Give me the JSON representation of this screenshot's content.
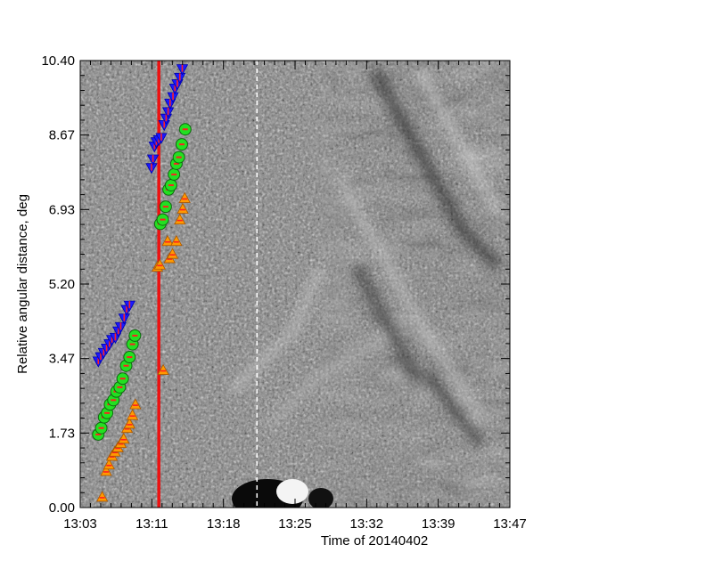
{
  "chart_data": {
    "type": "scatter",
    "xlabel": "Time of 20140402",
    "ylabel": "Relative angular distance, deg",
    "x_tick_labels": [
      "13:03",
      "13:11",
      "13:18",
      "13:25",
      "13:32",
      "13:39",
      "13:47"
    ],
    "y_tick_labels": [
      "0.00",
      "1.73",
      "3.47",
      "5.20",
      "6.93",
      "8.67",
      "10.40"
    ],
    "xlim_minutes": [
      0,
      44
    ],
    "ylim": [
      0,
      10.4
    ],
    "grid": false,
    "legend": "none",
    "background": "grayscale running-difference time-distance map",
    "markers": [
      {
        "series": "upper-blue",
        "shape": "triangle-down",
        "color": "#1a1aff",
        "edge": "#ff2020",
        "points": [
          [
            7.3,
            7.9
          ],
          [
            7.45,
            8.1
          ],
          [
            7.6,
            8.4
          ],
          [
            7.8,
            8.5
          ],
          [
            8.05,
            8.55
          ],
          [
            8.3,
            8.6
          ],
          [
            8.6,
            8.9
          ],
          [
            8.8,
            9.05
          ],
          [
            9.0,
            9.2
          ],
          [
            9.2,
            9.4
          ],
          [
            9.5,
            9.55
          ],
          [
            9.7,
            9.75
          ],
          [
            9.95,
            9.85
          ],
          [
            10.2,
            10.0
          ],
          [
            10.45,
            10.2
          ]
        ]
      },
      {
        "series": "upper-green",
        "shape": "circle",
        "color": "#22e022",
        "edge": "#ff2020",
        "points": [
          [
            8.2,
            6.6
          ],
          [
            8.45,
            6.7
          ],
          [
            8.75,
            7.0
          ],
          [
            9.05,
            7.4
          ],
          [
            9.3,
            7.5
          ],
          [
            9.6,
            7.75
          ],
          [
            9.85,
            8.0
          ],
          [
            10.1,
            8.15
          ],
          [
            10.4,
            8.45
          ],
          [
            10.75,
            8.8
          ]
        ]
      },
      {
        "series": "upper-orange",
        "shape": "triangle-up",
        "color": "#ff9a00",
        "edge": "#ff2020",
        "points": [
          [
            7.9,
            5.6
          ],
          [
            8.15,
            5.65
          ],
          [
            8.95,
            6.2
          ],
          [
            9.15,
            5.8
          ],
          [
            9.45,
            5.9
          ],
          [
            9.85,
            6.2
          ],
          [
            10.2,
            6.7
          ],
          [
            10.5,
            6.95
          ],
          [
            10.7,
            7.2
          ]
        ]
      },
      {
        "series": "lower-blue",
        "shape": "triangle-down",
        "color": "#1a1aff",
        "edge": "#ff2020",
        "points": [
          [
            1.85,
            3.4
          ],
          [
            2.1,
            3.5
          ],
          [
            2.4,
            3.6
          ],
          [
            2.7,
            3.7
          ],
          [
            3.0,
            3.8
          ],
          [
            3.25,
            3.9
          ],
          [
            3.6,
            3.95
          ],
          [
            3.9,
            4.1
          ],
          [
            4.15,
            4.2
          ],
          [
            4.5,
            4.4
          ],
          [
            4.75,
            4.6
          ],
          [
            5.05,
            4.7
          ]
        ]
      },
      {
        "series": "lower-green",
        "shape": "circle",
        "color": "#22e022",
        "edge": "#ff2020",
        "points": [
          [
            1.85,
            1.7
          ],
          [
            2.15,
            1.85
          ],
          [
            2.45,
            2.1
          ],
          [
            2.75,
            2.2
          ],
          [
            3.05,
            2.4
          ],
          [
            3.4,
            2.5
          ],
          [
            3.7,
            2.7
          ],
          [
            4.05,
            2.8
          ],
          [
            4.35,
            3.0
          ],
          [
            4.7,
            3.3
          ],
          [
            5.05,
            3.5
          ],
          [
            5.35,
            3.8
          ],
          [
            5.6,
            4.0
          ]
        ]
      },
      {
        "series": "lower-orange",
        "shape": "triangle-up",
        "color": "#ff9a00",
        "edge": "#ff2020",
        "points": [
          [
            2.25,
            0.25
          ],
          [
            2.65,
            0.85
          ],
          [
            2.95,
            1.0
          ],
          [
            3.25,
            1.2
          ],
          [
            3.55,
            1.3
          ],
          [
            3.85,
            1.4
          ],
          [
            4.15,
            1.5
          ],
          [
            4.45,
            1.6
          ],
          [
            4.8,
            1.85
          ],
          [
            5.05,
            1.95
          ],
          [
            5.35,
            2.15
          ],
          [
            5.65,
            2.4
          ],
          [
            8.5,
            3.2
          ]
        ]
      }
    ],
    "annotations": [
      {
        "name": "red-vertical-line",
        "x": 8.05,
        "color": "#ee1111",
        "style": "solid"
      },
      {
        "name": "white-dashed-line",
        "x": 18.1,
        "color": "#ffffff",
        "style": "dashed"
      }
    ]
  }
}
